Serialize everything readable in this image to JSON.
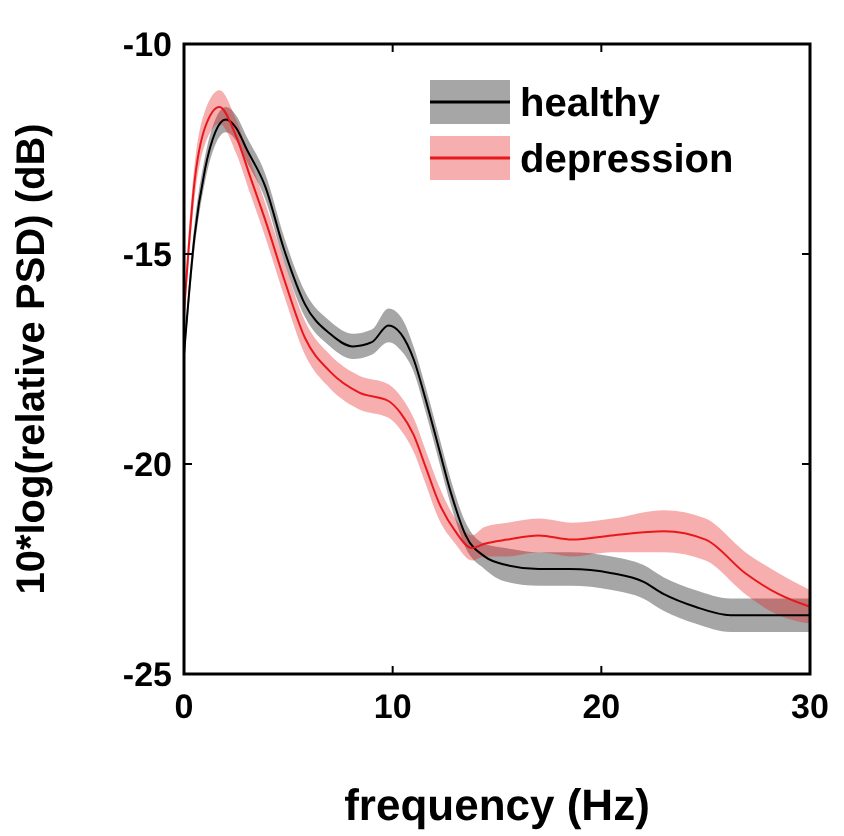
{
  "chart_data": {
    "type": "line",
    "xlabel": "frequency (Hz)",
    "ylabel": "10*log(relative PSD) (dB)",
    "xlim": [
      0,
      30
    ],
    "ylim": [
      -25,
      -10
    ],
    "xticks": [
      0,
      10,
      20,
      30
    ],
    "yticks": [
      -25,
      -20,
      -15,
      -10
    ],
    "grid": false,
    "legend": "top right",
    "line_style": "solid",
    "marker": "none",
    "series": [
      {
        "name": "healthy",
        "color": "#000000",
        "x": [
          0,
          0.5,
          1,
          1.5,
          2,
          2.5,
          3,
          3.9,
          4.8,
          5.8,
          7,
          8.1,
          9,
          9.8,
          10.4,
          11,
          11.6,
          12.2,
          12.8,
          13.5,
          14.4,
          15.4,
          17,
          18.5,
          20.5,
          22,
          23,
          24.5,
          26.2,
          28,
          30
        ],
        "values": [
          -17.4,
          -14.6,
          -13,
          -12.1,
          -11.8,
          -12,
          -12.5,
          -13.4,
          -14.9,
          -16.2,
          -16.9,
          -17.2,
          -17.1,
          -16.7,
          -16.9,
          -17.5,
          -18.5,
          -19.6,
          -20.7,
          -21.7,
          -22.2,
          -22.4,
          -22.5,
          -22.5,
          -22.6,
          -22.8,
          -23.1,
          -23.4,
          -23.6,
          -23.6,
          -23.6
        ],
        "lower": [
          -17.6,
          -14.9,
          -13.3,
          -12.4,
          -12.1,
          -12.3,
          -12.8,
          -13.7,
          -15.2,
          -16.5,
          -17.2,
          -17.5,
          -17.4,
          -17.1,
          -17.3,
          -17.8,
          -18.8,
          -19.9,
          -21,
          -22,
          -22.5,
          -22.8,
          -22.9,
          -22.9,
          -23,
          -23.2,
          -23.5,
          -23.8,
          -24,
          -24,
          -24
        ],
        "upper": [
          -17.2,
          -14.3,
          -12.7,
          -11.8,
          -11.5,
          -11.7,
          -12.2,
          -13.1,
          -14.6,
          -15.9,
          -16.6,
          -16.9,
          -16.8,
          -16.3,
          -16.5,
          -17.2,
          -18.2,
          -19.3,
          -20.4,
          -21.4,
          -21.9,
          -22,
          -22.1,
          -22.1,
          -22.2,
          -22.4,
          -22.7,
          -23,
          -23.2,
          -23.2,
          -23.2
        ]
      },
      {
        "name": "depression",
        "color": "#e8171b",
        "x": [
          0,
          0.5,
          1,
          1.7,
          2.5,
          3.2,
          3.9,
          4.8,
          5.8,
          7,
          8.4,
          9.8,
          10.4,
          11,
          11.6,
          12.2,
          13,
          13.8,
          14.4,
          15.5,
          17,
          18.6,
          20.5,
          23,
          25,
          26.9,
          28.5,
          30
        ],
        "values": [
          -16.4,
          -13.3,
          -12,
          -11.5,
          -12.2,
          -13.2,
          -14.2,
          -15.6,
          -17,
          -17.8,
          -18.3,
          -18.5,
          -18.8,
          -19.3,
          -20.1,
          -20.9,
          -21.6,
          -22,
          -21.9,
          -21.8,
          -21.7,
          -21.8,
          -21.7,
          -21.6,
          -21.8,
          -22.6,
          -23.1,
          -23.4
        ],
        "lower": [
          -16.7,
          -13.7,
          -12.4,
          -11.9,
          -12.6,
          -13.6,
          -14.6,
          -16,
          -17.4,
          -18.2,
          -18.7,
          -18.9,
          -19.2,
          -19.7,
          -20.5,
          -21.3,
          -21.9,
          -22.3,
          -22.2,
          -22.2,
          -22.1,
          -22.2,
          -22.1,
          -22.1,
          -22.3,
          -23.1,
          -23.6,
          -23.8
        ],
        "upper": [
          -16.1,
          -12.9,
          -11.6,
          -11.1,
          -11.8,
          -12.8,
          -13.8,
          -15.2,
          -16.6,
          -17.4,
          -17.9,
          -18.1,
          -18.4,
          -18.9,
          -19.7,
          -20.5,
          -21.3,
          -21.7,
          -21.5,
          -21.4,
          -21.3,
          -21.4,
          -21.3,
          -21.1,
          -21.3,
          -22.1,
          -22.6,
          -23
        ]
      }
    ]
  }
}
